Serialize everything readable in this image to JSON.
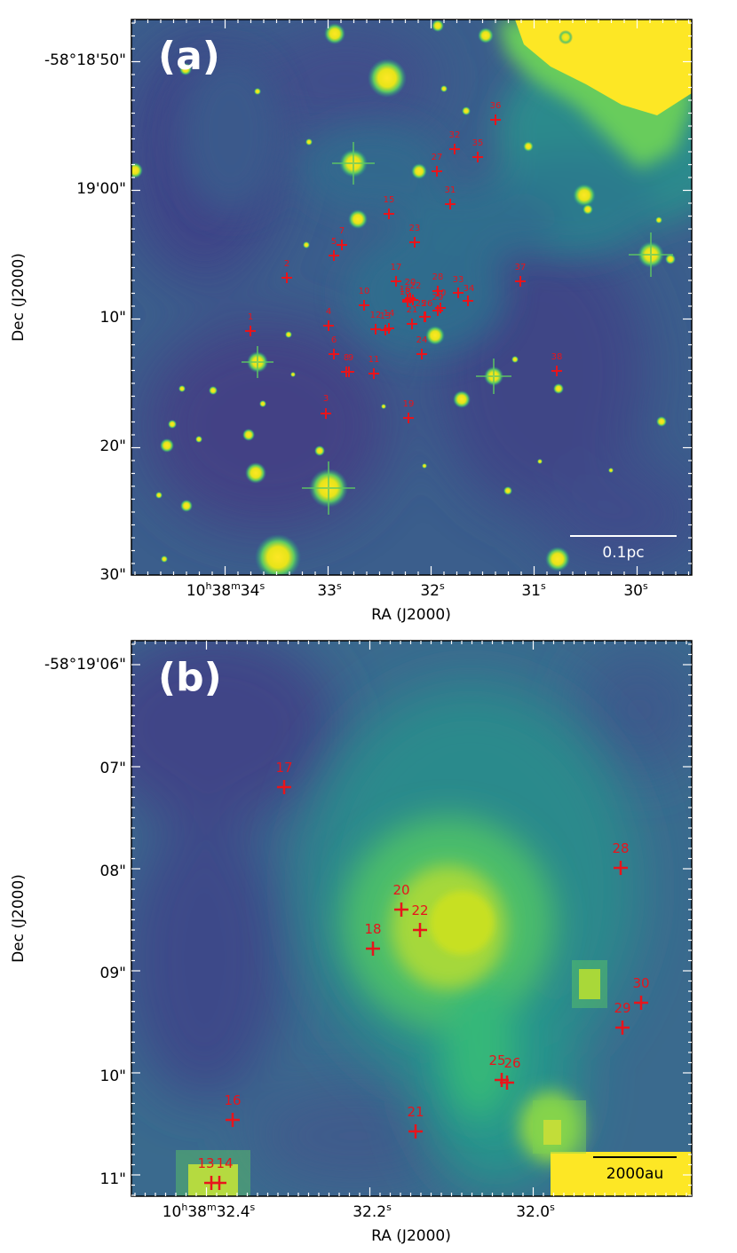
{
  "panel_a": {
    "letter": "(a)",
    "scalebar": "0.1pc",
    "xlabel": "RA (J2000)",
    "ylabel": "Dec (J2000)",
    "yticks": [
      "-58°18'50\"",
      "19'00\"",
      "10\"",
      "20\"",
      "30\""
    ],
    "xticks": [
      {
        "main": "10",
        "h": "h",
        "m1": "38",
        "m": "m",
        "s1": "34",
        "s": "s"
      },
      {
        "main": "33",
        "s": "s"
      },
      {
        "main": "32",
        "s": "s"
      },
      {
        "main": "31",
        "s": "s"
      },
      {
        "main": "30",
        "s": "s"
      }
    ],
    "sources": [
      "1",
      "2",
      "3",
      "4",
      "5",
      "6",
      "7",
      "8",
      "9",
      "10",
      "11",
      "12",
      "13",
      "14",
      "15",
      "16",
      "17",
      "18",
      "19",
      "20",
      "21",
      "22",
      "23",
      "24",
      "25",
      "26",
      "27",
      "28",
      "29",
      "30",
      "31",
      "32",
      "33",
      "34",
      "35",
      "36",
      "37",
      "38"
    ]
  },
  "panel_b": {
    "letter": "(b)",
    "scalebar": "2000au",
    "xlabel": "RA (J2000)",
    "ylabel": "Dec (J2000)",
    "yticks": [
      "-58°19'06\"",
      "07\"",
      "08\"",
      "09\"",
      "10\"",
      "11\""
    ],
    "xticks": [
      {
        "main": "10",
        "h": "h",
        "m1": "38",
        "m": "m",
        "s1": "32.4",
        "s": "s"
      },
      {
        "main": "32.2",
        "s": "s"
      },
      {
        "main": "32.0",
        "s": "s"
      }
    ],
    "sources": [
      "13",
      "14",
      "16",
      "17",
      "18",
      "20",
      "21",
      "22",
      "25",
      "26",
      "28",
      "29",
      "30"
    ]
  }
}
